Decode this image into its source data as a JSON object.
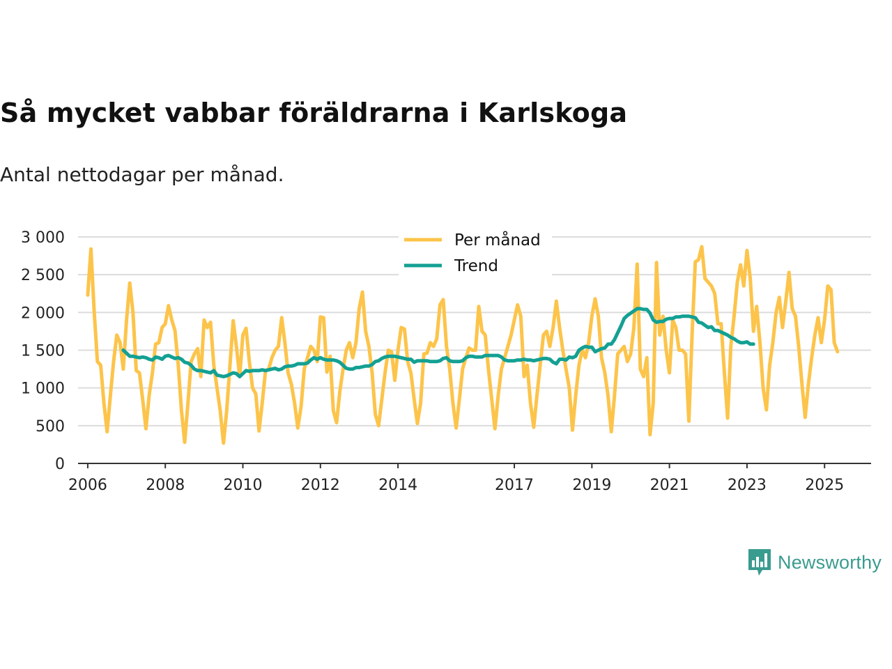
{
  "title": "Så mycket vabbar föräldrarna i Karlskoga",
  "subtitle": "Antal nettodagar per månad.",
  "brand": {
    "name": "Newsworthy",
    "icon": "newsworthy-logo-icon",
    "color": "#3a9b8f"
  },
  "chart_data": {
    "type": "line",
    "title": "Så mycket vabbar föräldrarna i Karlskoga",
    "subtitle": "Antal nettodagar per månad.",
    "xlabel": "",
    "ylabel": "",
    "xlim": [
      2005.75,
      2026.2
    ],
    "ylim": [
      0,
      3000
    ],
    "yticks": [
      0,
      500,
      1000,
      1500,
      2000,
      2500,
      3000
    ],
    "ytick_labels": [
      "0",
      "500",
      "1 000",
      "1 500",
      "2 000",
      "2 500",
      "3 000"
    ],
    "xticks": [
      2006,
      2008,
      2010,
      2012,
      2014,
      2017,
      2019,
      2021,
      2023,
      2025
    ],
    "xtick_labels": [
      "2006",
      "2008",
      "2010",
      "2012",
      "2014",
      "2017",
      "2019",
      "2021",
      "2023",
      "2025"
    ],
    "grid": true,
    "legend_position": "top-center",
    "series": [
      {
        "name": "Per månad",
        "color": "#fcc44a",
        "start_year": 2006,
        "start_month": 1,
        "values": [
          2230,
          2840,
          2000,
          1350,
          1300,
          800,
          420,
          900,
          1350,
          1700,
          1600,
          1250,
          1900,
          2390,
          2000,
          1230,
          1200,
          850,
          460,
          900,
          1200,
          1580,
          1600,
          1800,
          1850,
          2090,
          1900,
          1760,
          1300,
          700,
          280,
          800,
          1350,
          1450,
          1520,
          1150,
          1900,
          1800,
          1870,
          1300,
          1000,
          700,
          270,
          700,
          1300,
          1890,
          1550,
          1150,
          1700,
          1790,
          1350,
          1000,
          920,
          430,
          800,
          1230,
          1250,
          1400,
          1500,
          1550,
          1930,
          1600,
          1200,
          1050,
          800,
          470,
          750,
          1250,
          1400,
          1550,
          1500,
          1350,
          1940,
          1930,
          1210,
          1420,
          700,
          540,
          950,
          1250,
          1500,
          1600,
          1400,
          1600,
          2050,
          2270,
          1750,
          1550,
          1200,
          650,
          500,
          850,
          1200,
          1500,
          1480,
          1100,
          1500,
          1800,
          1780,
          1350,
          1200,
          850,
          530,
          800,
          1450,
          1460,
          1600,
          1550,
          1650,
          2100,
          2170,
          1550,
          1250,
          800,
          470,
          850,
          1250,
          1400,
          1530,
          1500,
          1500,
          2080,
          1750,
          1700,
          1250,
          850,
          460,
          900,
          1250,
          1400,
          1550,
          1700,
          1900,
          2100,
          1950,
          1150,
          1300,
          800,
          480,
          900,
          1300,
          1700,
          1750,
          1550,
          1800,
          2150,
          1800,
          1500,
          1250,
          1000,
          440,
          900,
          1300,
          1500,
          1400,
          1600,
          1950,
          2180,
          1950,
          1400,
          1200,
          900,
          420,
          900,
          1450,
          1500,
          1550,
          1350,
          1450,
          1800,
          2640,
          1250,
          1150,
          1400,
          380,
          800,
          2660,
          1700,
          1950,
          1500,
          1200,
          1900,
          1800,
          1500,
          1500,
          1450,
          560,
          1700,
          2670,
          2700,
          2870,
          2450,
          2400,
          2350,
          2250,
          1850,
          1850,
          1200,
          600,
          1550,
          1950,
          2400,
          2630,
          2350,
          2820,
          2450,
          1750,
          2080,
          1600,
          1000,
          710,
          1300,
          1600,
          2000,
          2200,
          1800,
          2150,
          2530,
          2050,
          1950,
          1550,
          1050,
          610,
          1050,
          1400,
          1700,
          1930,
          1600,
          1900,
          2350,
          2300,
          1600,
          1480
        ]
      },
      {
        "name": "Trend",
        "color": "#13a093",
        "start_year": 2006,
        "start_month": 12,
        "values": [
          1500,
          1460,
          1420,
          1420,
          1410,
          1400,
          1410,
          1400,
          1380,
          1370,
          1410,
          1400,
          1380,
          1420,
          1430,
          1410,
          1390,
          1400,
          1380,
          1340,
          1330,
          1300,
          1250,
          1230,
          1230,
          1220,
          1210,
          1200,
          1230,
          1170,
          1160,
          1150,
          1160,
          1180,
          1200,
          1190,
          1150,
          1190,
          1230,
          1220,
          1230,
          1230,
          1230,
          1240,
          1230,
          1240,
          1250,
          1260,
          1240,
          1250,
          1280,
          1290,
          1290,
          1300,
          1320,
          1320,
          1320,
          1330,
          1370,
          1400,
          1380,
          1400,
          1380,
          1370,
          1370,
          1370,
          1360,
          1340,
          1300,
          1260,
          1250,
          1250,
          1270,
          1270,
          1280,
          1290,
          1290,
          1310,
          1350,
          1360,
          1390,
          1410,
          1420,
          1420,
          1420,
          1410,
          1400,
          1390,
          1380,
          1380,
          1340,
          1360,
          1360,
          1360,
          1360,
          1350,
          1350,
          1350,
          1360,
          1390,
          1400,
          1360,
          1350,
          1350,
          1350,
          1360,
          1400,
          1420,
          1420,
          1410,
          1410,
          1410,
          1430,
          1430,
          1430,
          1430,
          1430,
          1410,
          1370,
          1360,
          1360,
          1360,
          1370,
          1370,
          1380,
          1370,
          1370,
          1360,
          1370,
          1380,
          1390,
          1390,
          1380,
          1340,
          1320,
          1380,
          1380,
          1370,
          1410,
          1400,
          1420,
          1500,
          1530,
          1550,
          1540,
          1540,
          1480,
          1500,
          1520,
          1530,
          1580,
          1580,
          1640,
          1730,
          1820,
          1920,
          1960,
          1990,
          2020,
          2050,
          2050,
          2040,
          2040,
          1990,
          1900,
          1870,
          1880,
          1880,
          1910,
          1920,
          1920,
          1940,
          1940,
          1950,
          1950,
          1950,
          1940,
          1930,
          1870,
          1860,
          1830,
          1800,
          1810,
          1760,
          1760,
          1740,
          1720,
          1700,
          1670,
          1650,
          1620,
          1600,
          1600,
          1610,
          1580,
          1580
        ]
      }
    ]
  }
}
